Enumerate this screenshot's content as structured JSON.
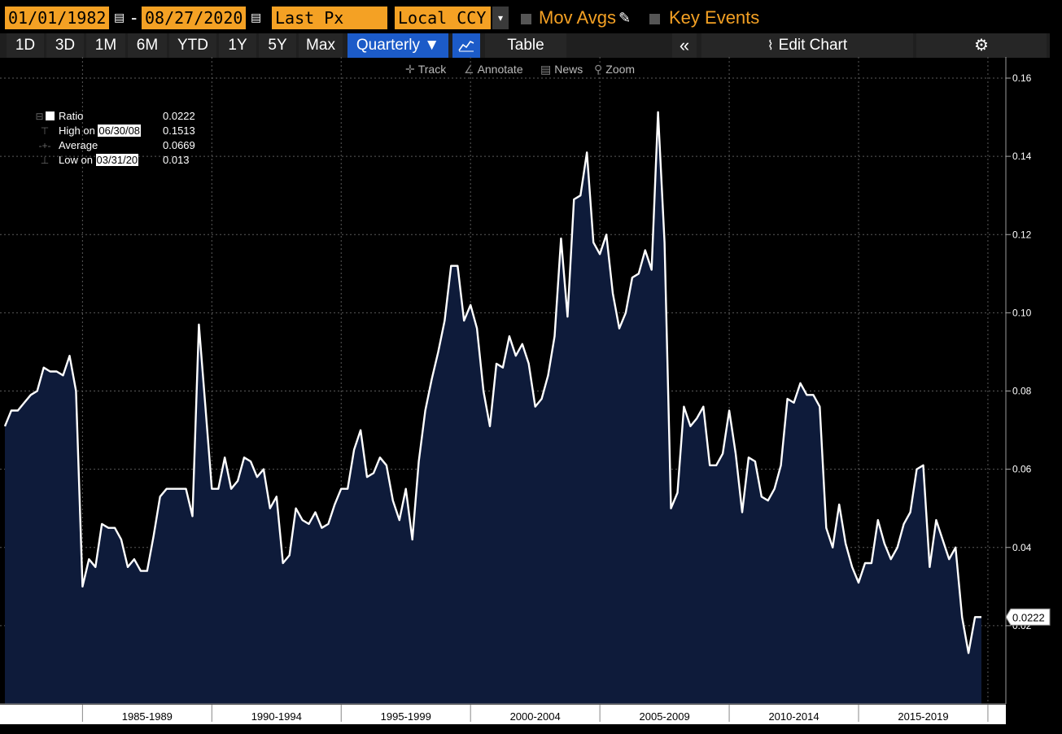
{
  "toolbar": {
    "start_date": "01/01/1982",
    "date_separator": "-",
    "end_date": "08/27/2020",
    "price_field": "Last Px",
    "currency": "Local CCY",
    "currency_dropdown": "▾",
    "mov_avgs_label": "Mov Avgs",
    "key_events_label": "Key Events"
  },
  "periods": [
    "1D",
    "3D",
    "1M",
    "6M",
    "YTD",
    "1Y",
    "5Y",
    "Max"
  ],
  "controls": {
    "frequency": "Quarterly ▼",
    "table_label": "Table",
    "collapse": "«",
    "edit_chart_label": "Edit Chart",
    "settings": "⚙"
  },
  "tools": {
    "track": "Track",
    "annotate": "Annotate",
    "news": "News",
    "zoom": "Zoom"
  },
  "legend": {
    "ratio_label": "Ratio",
    "ratio_value": "0.0222",
    "high_prefix": "High on ",
    "high_date": "06/30/08",
    "high_value": "0.1513",
    "average_label": "Average",
    "average_value": "0.0669",
    "low_prefix": "Low on ",
    "low_date": "03/31/20",
    "low_value": "0.013"
  },
  "colors": {
    "background": "#000000",
    "area_fill": "#0e1b3a",
    "line": "#ffffff",
    "accent_orange": "#f4a124",
    "active_blue": "#1c5bc8"
  },
  "chart_data": {
    "type": "area",
    "ylim": [
      0,
      0.16
    ],
    "yticks": [
      0.02,
      0.04,
      0.06,
      0.08,
      0.1,
      0.12,
      0.14,
      0.16
    ],
    "ytick_labels": [
      "0.02",
      "0.04",
      "0.06",
      "0.08",
      "0.10",
      "0.12",
      "0.14",
      "0.16"
    ],
    "x_period_labels": [
      "1985-1989",
      "1990-1994",
      "1995-1999",
      "2000-2004",
      "2005-2009",
      "2010-2014",
      "2015-2019"
    ],
    "x_start": "1982 Q1",
    "frequency": "quarterly",
    "last_value_label": "0.0222",
    "series": [
      {
        "values": [
          0.071,
          0.075,
          0.075,
          0.077,
          0.079,
          0.08,
          0.086,
          0.085,
          0.085,
          0.084,
          0.089,
          0.08,
          0.03,
          0.037,
          0.035,
          0.046,
          0.045,
          0.045,
          0.042,
          0.035,
          0.037,
          0.034,
          0.034,
          0.043,
          0.053,
          0.055,
          0.055,
          0.055,
          0.055,
          0.048,
          0.097,
          0.076,
          0.055,
          0.055,
          0.063,
          0.055,
          0.057,
          0.063,
          0.062,
          0.058,
          0.06,
          0.05,
          0.053,
          0.036,
          0.038,
          0.05,
          0.047,
          0.046,
          0.049,
          0.045,
          0.046,
          0.051,
          0.055,
          0.055,
          0.065,
          0.07,
          0.058,
          0.059,
          0.063,
          0.061,
          0.052,
          0.047,
          0.055,
          0.042,
          0.062,
          0.075,
          0.083,
          0.09,
          0.098,
          0.112,
          0.112,
          0.098,
          0.102,
          0.096,
          0.08,
          0.071,
          0.087,
          0.086,
          0.094,
          0.089,
          0.092,
          0.087,
          0.076,
          0.078,
          0.084,
          0.094,
          0.119,
          0.099,
          0.129,
          0.13,
          0.141,
          0.118,
          0.115,
          0.12,
          0.105,
          0.096,
          0.1,
          0.109,
          0.11,
          0.116,
          0.111,
          0.1513,
          0.118,
          0.05,
          0.054,
          0.076,
          0.071,
          0.073,
          0.076,
          0.061,
          0.061,
          0.064,
          0.075,
          0.064,
          0.049,
          0.063,
          0.062,
          0.053,
          0.052,
          0.055,
          0.061,
          0.078,
          0.077,
          0.082,
          0.079,
          0.079,
          0.076,
          0.045,
          0.04,
          0.051,
          0.041,
          0.035,
          0.031,
          0.036,
          0.036,
          0.047,
          0.041,
          0.037,
          0.04,
          0.046,
          0.049,
          0.06,
          0.061,
          0.035,
          0.047,
          0.042,
          0.037,
          0.04,
          0.0222,
          0.013,
          0.0222,
          0.0222
        ]
      }
    ]
  }
}
